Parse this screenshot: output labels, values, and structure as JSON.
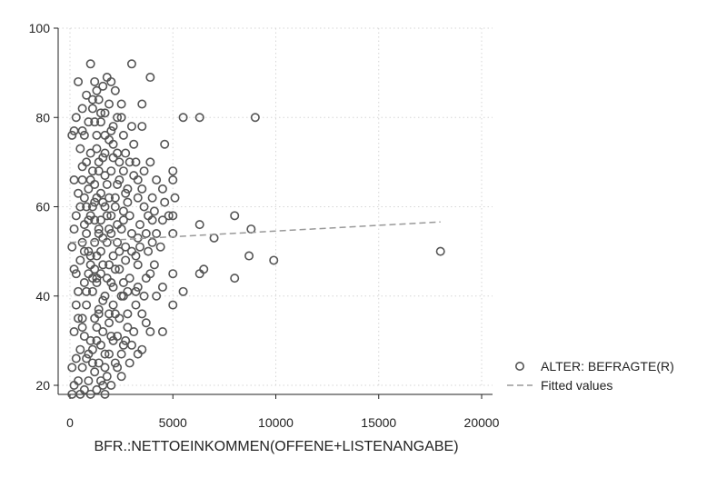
{
  "chart_data": {
    "type": "scatter",
    "title": "",
    "xlabel": "BFR.:NETTOEINKOMMEN(OFFENE+LISTENANGABE)",
    "ylabel": "",
    "xlim": [
      0,
      20000
    ],
    "ylim": [
      20,
      100
    ],
    "x_ticks": [
      0,
      5000,
      10000,
      15000,
      20000
    ],
    "y_ticks": [
      20,
      40,
      60,
      80,
      100
    ],
    "x_tick_labels": [
      "0",
      "5000",
      "10000",
      "15000",
      "20000"
    ],
    "y_tick_labels": [
      "20",
      "40",
      "60",
      "80",
      "100"
    ],
    "grid": "dotted",
    "legend_position": "right",
    "colors": {
      "marker": "#555555",
      "fit_line": "#999999",
      "grid": "#d6d6d6"
    },
    "series": [
      {
        "name": "ALTER: BEFRAGTE(R)",
        "kind": "scatter",
        "marker": "hollow-circle",
        "points": [
          [
            1000,
            92
          ],
          [
            3000,
            92
          ],
          [
            3900,
            89
          ],
          [
            1800,
            89
          ],
          [
            400,
            88
          ],
          [
            1200,
            88
          ],
          [
            2000,
            88
          ],
          [
            1600,
            87
          ],
          [
            2200,
            86
          ],
          [
            800,
            85
          ],
          [
            1400,
            84
          ],
          [
            2500,
            83
          ],
          [
            3500,
            83
          ],
          [
            600,
            82
          ],
          [
            1100,
            82
          ],
          [
            1700,
            81
          ],
          [
            2300,
            80
          ],
          [
            5500,
            80
          ],
          [
            6300,
            80
          ],
          [
            9000,
            80
          ],
          [
            300,
            80
          ],
          [
            900,
            79
          ],
          [
            1500,
            79
          ],
          [
            2100,
            78
          ],
          [
            3000,
            78
          ],
          [
            3500,
            78
          ],
          [
            200,
            77
          ],
          [
            700,
            76
          ],
          [
            1300,
            76
          ],
          [
            1900,
            75
          ],
          [
            2600,
            76
          ],
          [
            4600,
            74
          ],
          [
            100,
            76
          ],
          [
            500,
            73
          ],
          [
            1000,
            72
          ],
          [
            1600,
            71
          ],
          [
            2400,
            70
          ],
          [
            3900,
            70
          ],
          [
            800,
            70
          ],
          [
            1400,
            68
          ],
          [
            2000,
            68
          ],
          [
            3100,
            67
          ],
          [
            5000,
            68
          ],
          [
            5000,
            66
          ],
          [
            600,
            66
          ],
          [
            1200,
            65
          ],
          [
            1800,
            65
          ],
          [
            2800,
            64
          ],
          [
            4500,
            64
          ],
          [
            700,
            62
          ],
          [
            1300,
            62
          ],
          [
            2200,
            62
          ],
          [
            3300,
            62
          ],
          [
            4000,
            62
          ],
          [
            500,
            60
          ],
          [
            1100,
            60
          ],
          [
            1700,
            60
          ],
          [
            2600,
            59
          ],
          [
            3800,
            58
          ],
          [
            5000,
            58
          ],
          [
            8000,
            58
          ],
          [
            300,
            58
          ],
          [
            900,
            57
          ],
          [
            1500,
            57
          ],
          [
            2300,
            56
          ],
          [
            4500,
            57
          ],
          [
            6300,
            56
          ],
          [
            8800,
            55
          ],
          [
            200,
            55
          ],
          [
            800,
            54
          ],
          [
            1400,
            54
          ],
          [
            2000,
            54
          ],
          [
            3000,
            54
          ],
          [
            4200,
            54
          ],
          [
            5000,
            54
          ],
          [
            7000,
            53
          ],
          [
            600,
            52
          ],
          [
            1200,
            52
          ],
          [
            1800,
            52
          ],
          [
            2700,
            51
          ],
          [
            18000,
            50
          ],
          [
            100,
            51
          ],
          [
            700,
            50
          ],
          [
            1300,
            49
          ],
          [
            2100,
            49
          ],
          [
            3200,
            49
          ],
          [
            8700,
            49
          ],
          [
            9900,
            48
          ],
          [
            500,
            48
          ],
          [
            1000,
            47
          ],
          [
            1600,
            47
          ],
          [
            2400,
            46
          ],
          [
            6500,
            46
          ],
          [
            300,
            45
          ],
          [
            900,
            45
          ],
          [
            1500,
            45
          ],
          [
            3900,
            45
          ],
          [
            5000,
            45
          ],
          [
            6300,
            45
          ],
          [
            8000,
            44
          ],
          [
            700,
            43
          ],
          [
            1300,
            43
          ],
          [
            2000,
            43
          ],
          [
            3300,
            42
          ],
          [
            5500,
            41
          ],
          [
            4500,
            42
          ],
          [
            1100,
            41
          ],
          [
            1700,
            40
          ],
          [
            2600,
            40
          ],
          [
            4200,
            40
          ],
          [
            5000,
            38
          ],
          [
            300,
            38
          ],
          [
            800,
            38
          ],
          [
            1400,
            37
          ],
          [
            2200,
            36
          ],
          [
            3500,
            36
          ],
          [
            600,
            35
          ],
          [
            1200,
            35
          ],
          [
            1900,
            34
          ],
          [
            2800,
            33
          ],
          [
            4500,
            32
          ],
          [
            3900,
            32
          ],
          [
            200,
            32
          ],
          [
            700,
            31
          ],
          [
            1300,
            30
          ],
          [
            2100,
            30
          ],
          [
            3000,
            29
          ],
          [
            500,
            28
          ],
          [
            1100,
            28
          ],
          [
            1700,
            27
          ],
          [
            2500,
            27
          ],
          [
            3500,
            28
          ],
          [
            300,
            26
          ],
          [
            800,
            26
          ],
          [
            1400,
            25
          ],
          [
            2200,
            25
          ],
          [
            100,
            24
          ],
          [
            600,
            24
          ],
          [
            1200,
            23
          ],
          [
            1800,
            22
          ],
          [
            2500,
            22
          ],
          [
            400,
            21
          ],
          [
            900,
            21
          ],
          [
            1500,
            21
          ],
          [
            2000,
            20
          ],
          [
            200,
            20
          ],
          [
            700,
            19
          ],
          [
            1300,
            19
          ],
          [
            1000,
            18
          ],
          [
            1700,
            18
          ],
          [
            500,
            18
          ],
          [
            100,
            18
          ],
          [
            2500,
            40
          ],
          [
            2300,
            72
          ],
          [
            1800,
            58
          ],
          [
            1200,
            57
          ],
          [
            2600,
            57
          ],
          [
            1000,
            66
          ],
          [
            1900,
            62
          ],
          [
            2800,
            61
          ],
          [
            3400,
            56
          ],
          [
            1500,
            50
          ],
          [
            2200,
            46
          ],
          [
            1100,
            44
          ],
          [
            2900,
            44
          ],
          [
            1600,
            39
          ],
          [
            2400,
            35
          ],
          [
            3200,
            38
          ],
          [
            1300,
            33
          ],
          [
            2000,
            31
          ],
          [
            900,
            27
          ],
          [
            1700,
            24
          ],
          [
            800,
            60
          ],
          [
            1400,
            70
          ],
          [
            2100,
            74
          ],
          [
            1200,
            79
          ],
          [
            600,
            69
          ],
          [
            1500,
            63
          ],
          [
            2300,
            65
          ],
          [
            2900,
            70
          ],
          [
            700,
            56
          ],
          [
            1600,
            53
          ],
          [
            2500,
            55
          ],
          [
            3400,
            51
          ],
          [
            1000,
            49
          ],
          [
            1900,
            47
          ],
          [
            2700,
            48
          ],
          [
            3700,
            44
          ],
          [
            800,
            41
          ],
          [
            1400,
            36
          ],
          [
            2100,
            38
          ],
          [
            2800,
            36
          ],
          [
            600,
            33
          ],
          [
            1500,
            29
          ],
          [
            2300,
            31
          ],
          [
            1100,
            25
          ],
          [
            1900,
            27
          ],
          [
            1200,
            61
          ],
          [
            900,
            64
          ],
          [
            1700,
            67
          ],
          [
            2600,
            68
          ],
          [
            3300,
            66
          ],
          [
            1000,
            58
          ],
          [
            2000,
            58
          ],
          [
            3600,
            60
          ],
          [
            4000,
            57
          ],
          [
            1400,
            55
          ],
          [
            2300,
            52
          ],
          [
            3000,
            50
          ],
          [
            3800,
            50
          ],
          [
            1200,
            46
          ],
          [
            2100,
            42
          ],
          [
            2800,
            41
          ],
          [
            3600,
            40
          ],
          [
            1600,
            32
          ],
          [
            2700,
            30
          ],
          [
            1000,
            30
          ],
          [
            1900,
            36
          ],
          [
            1300,
            73
          ],
          [
            2000,
            77
          ],
          [
            2700,
            72
          ],
          [
            3200,
            70
          ],
          [
            1100,
            68
          ],
          [
            2100,
            71
          ],
          [
            3500,
            64
          ],
          [
            1600,
            61
          ],
          [
            2700,
            63
          ],
          [
            4100,
            59
          ],
          [
            1900,
            55
          ],
          [
            2900,
            58
          ],
          [
            4600,
            61
          ],
          [
            2400,
            50
          ],
          [
            3300,
            47
          ],
          [
            4100,
            47
          ],
          [
            1800,
            44
          ],
          [
            2600,
            43
          ],
          [
            3200,
            41
          ],
          [
            4800,
            58
          ],
          [
            5100,
            62
          ],
          [
            1300,
            44
          ],
          [
            900,
            50
          ],
          [
            2200,
            60
          ],
          [
            2400,
            66
          ],
          [
            1700,
            72
          ],
          [
            600,
            77
          ],
          [
            400,
            63
          ],
          [
            400,
            41
          ],
          [
            400,
            35
          ],
          [
            200,
            66
          ],
          [
            200,
            46
          ],
          [
            1500,
            81
          ],
          [
            1300,
            86
          ],
          [
            1900,
            83
          ],
          [
            2500,
            80
          ],
          [
            1100,
            84
          ],
          [
            1700,
            76
          ],
          [
            3100,
            74
          ],
          [
            3600,
            68
          ],
          [
            4200,
            66
          ],
          [
            4000,
            52
          ],
          [
            3300,
            53
          ],
          [
            3700,
            54
          ],
          [
            4400,
            51
          ],
          [
            3700,
            34
          ],
          [
            3100,
            32
          ],
          [
            2600,
            29
          ],
          [
            2900,
            25
          ],
          [
            3300,
            27
          ],
          [
            2300,
            24
          ],
          [
            1600,
            20
          ]
        ]
      },
      {
        "name": "Fitted values",
        "kind": "line",
        "style": "dashed",
        "points": [
          [
            0,
            52.0
          ],
          [
            18000,
            56.6
          ]
        ]
      }
    ]
  }
}
